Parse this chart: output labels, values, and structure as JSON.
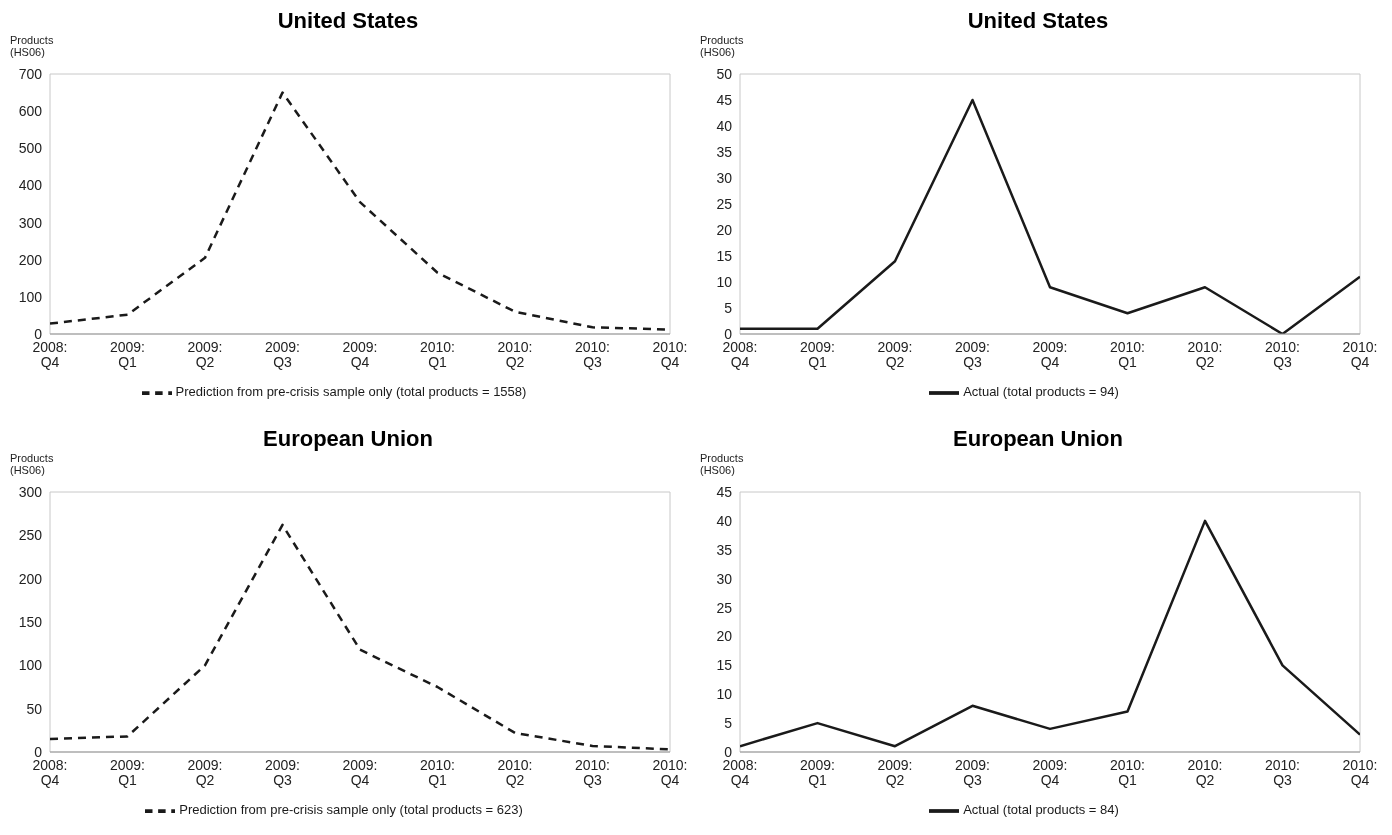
{
  "chart_data": [
    {
      "type": "line",
      "title": "United States",
      "ylabel": "Products (HS06)",
      "categories": [
        "2008: Q4",
        "2009: Q1",
        "2009: Q2",
        "2009: Q3",
        "2009: Q4",
        "2010: Q1",
        "2010: Q2",
        "2010: Q3",
        "2010: Q4"
      ],
      "series": [
        {
          "name": "Prediction from pre-crisis sample only (total products = 1558)",
          "color": "#1a1a1a",
          "line_style": "dashed",
          "values": [
            28,
            52,
            205,
            650,
            355,
            165,
            60,
            18,
            12
          ]
        }
      ],
      "ylim": [
        0,
        700
      ],
      "yticks": [
        0,
        100,
        200,
        300,
        400,
        500,
        600,
        700
      ],
      "legend": "bottom",
      "marker": "none"
    },
    {
      "type": "line",
      "title": "United States",
      "ylabel": "Products (HS06)",
      "categories": [
        "2008: Q4",
        "2009: Q1",
        "2009: Q2",
        "2009: Q3",
        "2009: Q4",
        "2010: Q1",
        "2010: Q2",
        "2010: Q3",
        "2010: Q4"
      ],
      "series": [
        {
          "name": "Actual (total products = 94)",
          "color": "#1a1a1a",
          "line_style": "solid",
          "values": [
            1,
            1,
            14,
            45,
            9,
            4,
            9,
            0,
            11
          ]
        }
      ],
      "ylim": [
        0,
        50
      ],
      "yticks": [
        0,
        5,
        10,
        15,
        20,
        25,
        30,
        35,
        40,
        45,
        50
      ],
      "legend": "bottom",
      "marker": "none"
    },
    {
      "type": "line",
      "title": "European Union",
      "ylabel": "Products (HS06)",
      "categories": [
        "2008: Q4",
        "2009: Q1",
        "2009: Q2",
        "2009: Q3",
        "2009: Q4",
        "2010: Q1",
        "2010: Q2",
        "2010: Q3",
        "2010: Q4"
      ],
      "series": [
        {
          "name": "Prediction from pre-crisis sample only (total products = 623)",
          "color": "#1a1a1a",
          "line_style": "dashed",
          "values": [
            15,
            18,
            100,
            262,
            118,
            75,
            22,
            7,
            3
          ]
        }
      ],
      "ylim": [
        0,
        300
      ],
      "yticks": [
        0,
        50,
        100,
        150,
        200,
        250,
        300
      ],
      "legend": "bottom",
      "marker": "none"
    },
    {
      "type": "line",
      "title": "European Union",
      "ylabel": "Products (HS06)",
      "categories": [
        "2008: Q4",
        "2009: Q1",
        "2009: Q2",
        "2009: Q3",
        "2009: Q4",
        "2010: Q1",
        "2010: Q2",
        "2010: Q3",
        "2010: Q4"
      ],
      "series": [
        {
          "name": "Actual (total products = 84)",
          "color": "#1a1a1a",
          "line_style": "solid",
          "values": [
            1,
            5,
            1,
            8,
            4,
            7,
            40,
            15,
            3
          ]
        }
      ],
      "ylim": [
        0,
        45
      ],
      "yticks": [
        0,
        5,
        10,
        15,
        20,
        25,
        30,
        35,
        40,
        45
      ],
      "legend": "bottom",
      "marker": "none"
    }
  ]
}
